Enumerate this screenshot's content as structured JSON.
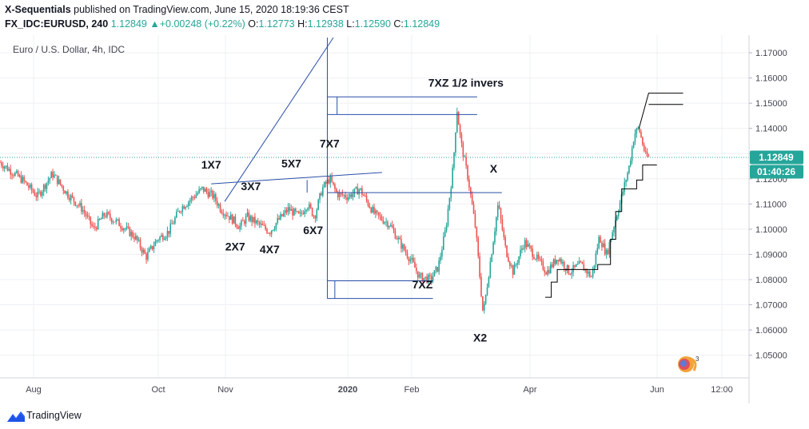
{
  "header": {
    "publisher": "X-Sequentials",
    "published_text": "published on TradingView.com, June 15, 2020 18:19:36 CEST",
    "symbol": "FX_IDC:EURUSD, 240",
    "last_price": "1.12849",
    "change_arrow": "▲",
    "change": "+0.00248 (+0.22%)",
    "ohlc": [
      {
        "label": "O:",
        "value": "1.12773"
      },
      {
        "label": "H:",
        "value": "1.12938"
      },
      {
        "label": "L:",
        "value": "1.12590"
      },
      {
        "label": "C:",
        "value": "1.12849"
      }
    ]
  },
  "footer": {
    "brand": "TradingView",
    "logo_icon": "tradingview-logo-icon"
  },
  "colors": {
    "up": "#26a69a",
    "down": "#ef5350",
    "drawing": "#2a4fa8",
    "current_price_badge": "#26a69a",
    "countdown_badge": "#26a69a",
    "grid": "#eef0f4"
  },
  "chart_data": {
    "type": "candlestick",
    "title": "Euro / U.S. Dollar, 4h, IDC",
    "ylim": [
      1.041,
      1.177
    ],
    "y_ticks": [
      "1.05000",
      "1.06000",
      "1.07000",
      "1.08000",
      "1.09000",
      "1.10000",
      "1.11000",
      "1.12000",
      "1.13000",
      "1.14000",
      "1.15000",
      "1.16000",
      "1.17000"
    ],
    "x_ticks": [
      "Aug",
      "Oct",
      "Nov",
      "2020",
      "Feb",
      "Apr",
      "Jun",
      "12:00"
    ],
    "current_price_label": "1.12849",
    "countdown_label": "01:40:26",
    "grid": true,
    "price_path": [
      [
        0,
        1.1265
      ],
      [
        0.03,
        1.1195
      ],
      [
        0.05,
        1.113
      ],
      [
        0.07,
        1.122
      ],
      [
        0.09,
        1.114
      ],
      [
        0.11,
        1.108
      ],
      [
        0.125,
        1.1
      ],
      [
        0.14,
        1.106
      ],
      [
        0.16,
        1.102
      ],
      [
        0.18,
        1.097
      ],
      [
        0.195,
        1.089
      ],
      [
        0.21,
        1.096
      ],
      [
        0.225,
        1.099
      ],
      [
        0.24,
        1.108
      ],
      [
        0.255,
        1.112
      ],
      [
        0.27,
        1.116
      ],
      [
        0.285,
        1.113
      ],
      [
        0.295,
        1.108
      ],
      [
        0.31,
        1.104
      ],
      [
        0.32,
        1.101
      ],
      [
        0.33,
        1.105
      ],
      [
        0.345,
        1.102
      ],
      [
        0.36,
        1.099
      ],
      [
        0.37,
        1.103
      ],
      [
        0.385,
        1.108
      ],
      [
        0.4,
        1.105
      ],
      [
        0.41,
        1.11
      ],
      [
        0.42,
        1.105
      ],
      [
        0.43,
        1.116
      ],
      [
        0.44,
        1.12
      ],
      [
        0.45,
        1.114
      ],
      [
        0.465,
        1.113
      ],
      [
        0.48,
        1.116
      ],
      [
        0.5,
        1.106
      ],
      [
        0.52,
        1.102
      ],
      [
        0.535,
        1.094
      ],
      [
        0.55,
        1.087
      ],
      [
        0.56,
        1.081
      ],
      [
        0.575,
        1.08
      ],
      [
        0.585,
        1.085
      ],
      [
        0.595,
        1.1
      ],
      [
        0.605,
        1.125
      ],
      [
        0.61,
        1.148
      ],
      [
        0.615,
        1.135
      ],
      [
        0.625,
        1.12
      ],
      [
        0.635,
        1.1
      ],
      [
        0.645,
        1.066
      ],
      [
        0.655,
        1.088
      ],
      [
        0.665,
        1.11
      ],
      [
        0.675,
        1.092
      ],
      [
        0.685,
        1.083
      ],
      [
        0.7,
        1.095
      ],
      [
        0.715,
        1.089
      ],
      [
        0.73,
        1.083
      ],
      [
        0.745,
        1.089
      ],
      [
        0.76,
        1.083
      ],
      [
        0.775,
        1.086
      ],
      [
        0.79,
        1.081
      ],
      [
        0.8,
        1.097
      ],
      [
        0.81,
        1.09
      ],
      [
        0.82,
        1.102
      ],
      [
        0.83,
        1.113
      ],
      [
        0.84,
        1.125
      ],
      [
        0.847,
        1.138
      ],
      [
        0.853,
        1.14
      ],
      [
        0.857,
        1.135
      ],
      [
        0.862,
        1.129
      ],
      [
        0.866,
        1.1285
      ]
    ],
    "annotations": [
      {
        "text": "1X7",
        "x": 0.282,
        "y": 1.1241
      },
      {
        "text": "2X7",
        "x": 0.314,
        "y": 1.0915
      },
      {
        "text": "3X7",
        "x": 0.335,
        "y": 1.1155
      },
      {
        "text": "4X7",
        "x": 0.36,
        "y": 1.0905
      },
      {
        "text": "5X7",
        "x": 0.389,
        "y": 1.1245
      },
      {
        "text": "6X7",
        "x": 0.418,
        "y": 1.098
      },
      {
        "text": "7X7",
        "x": 0.44,
        "y": 1.1325
      },
      {
        "text": "7XZ 1/2 invers",
        "x": 0.622,
        "y": 1.1565
      },
      {
        "text": "X",
        "x": 0.659,
        "y": 1.1225
      },
      {
        "text": "7XZ",
        "x": 0.564,
        "y": 1.0765
      },
      {
        "text": "X2",
        "x": 0.641,
        "y": 1.0555
      }
    ],
    "drawings": [
      [
        [
          0.3,
          1.111
        ],
        [
          0.445,
          1.176
        ]
      ],
      [
        [
          0.282,
          1.118
        ],
        [
          0.51,
          1.1225
        ]
      ],
      [
        [
          0.437,
          1.176
        ],
        [
          0.437,
          1.0725
        ]
      ],
      [
        [
          0.437,
          1.1525
        ],
        [
          0.637,
          1.1525
        ]
      ],
      [
        [
          0.437,
          1.1455
        ],
        [
          0.637,
          1.1455
        ]
      ],
      [
        [
          0.45,
          1.1525
        ],
        [
          0.45,
          1.1455
        ]
      ],
      [
        [
          0.437,
          1.1145
        ],
        [
          0.67,
          1.1145
        ]
      ],
      [
        [
          0.41,
          1.1195
        ],
        [
          0.41,
          1.1145
        ]
      ],
      [
        [
          0.437,
          1.0795
        ],
        [
          0.578,
          1.0795
        ]
      ],
      [
        [
          0.437,
          1.0725
        ],
        [
          0.578,
          1.0725
        ]
      ],
      [
        [
          0.447,
          1.0795
        ],
        [
          0.447,
          1.0725
        ]
      ]
    ],
    "staircase": [
      [
        0.728,
        1.073
      ],
      [
        0.736,
        1.073
      ],
      [
        0.736,
        1.079
      ],
      [
        0.744,
        1.079
      ],
      [
        0.744,
        1.084
      ],
      [
        0.798,
        1.084
      ],
      [
        0.798,
        1.086
      ],
      [
        0.815,
        1.086
      ],
      [
        0.815,
        1.096
      ],
      [
        0.822,
        1.096
      ],
      [
        0.822,
        1.107
      ],
      [
        0.83,
        1.107
      ],
      [
        0.83,
        1.116
      ],
      [
        0.85,
        1.116
      ],
      [
        0.85,
        1.1195
      ],
      [
        0.858,
        1.1195
      ],
      [
        0.858,
        1.1255
      ],
      [
        0.866,
        1.1255
      ]
    ],
    "projection": [
      [
        0.853,
        1.14
      ],
      [
        0.866,
        1.154
      ],
      [
        0.912,
        1.154
      ]
    ],
    "projection_lower": [
      [
        0.866,
        1.1495
      ],
      [
        0.912,
        1.1495
      ]
    ],
    "projection_mid": [
      [
        0.866,
        1.1255
      ],
      [
        0.877,
        1.1255
      ]
    ]
  }
}
